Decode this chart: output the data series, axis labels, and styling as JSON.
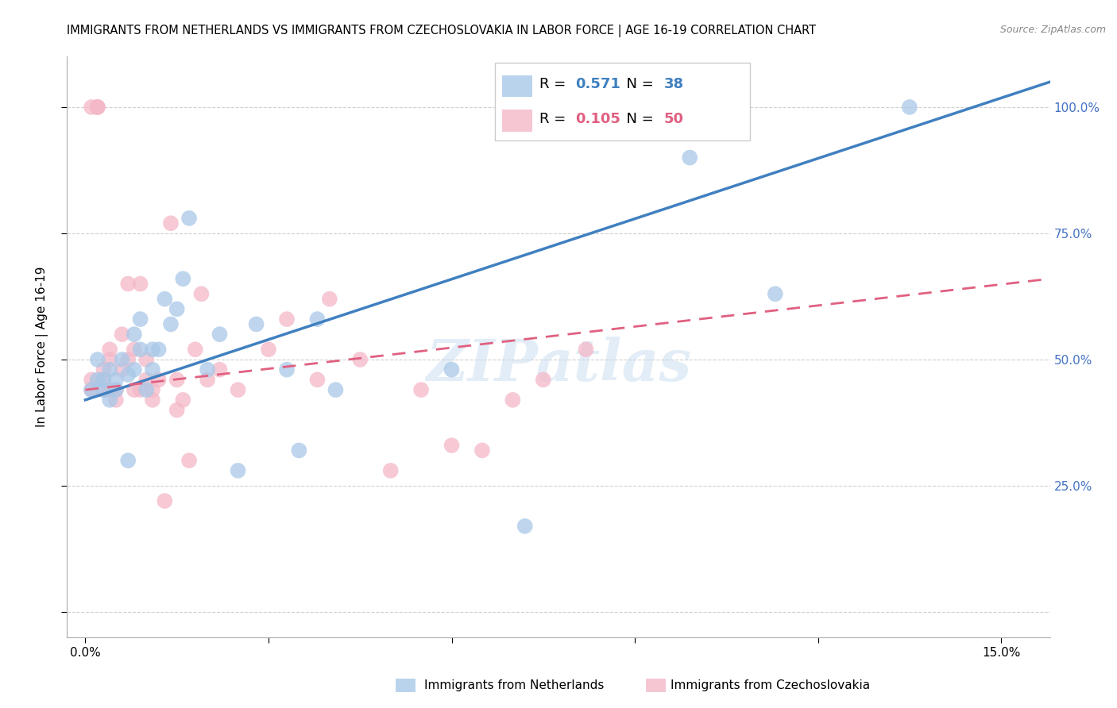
{
  "title": "IMMIGRANTS FROM NETHERLANDS VS IMMIGRANTS FROM CZECHOSLOVAKIA IN LABOR FORCE | AGE 16-19 CORRELATION CHART",
  "source": "Source: ZipAtlas.com",
  "ylabel": "In Labor Force | Age 16-19",
  "xlim": [
    -0.003,
    0.158
  ],
  "ylim": [
    -0.05,
    1.1
  ],
  "R_netherlands": 0.571,
  "N_netherlands": 38,
  "R_czechoslovakia": 0.105,
  "N_czechoslovakia": 50,
  "color_netherlands": "#a8c8e8",
  "color_czechoslovakia": "#f4b8c8",
  "color_netherlands_line": "#4080c0",
  "color_czechoslovakia_line": "#e06080",
  "legend_label_netherlands": "Immigrants from Netherlands",
  "legend_label_czechoslovakia": "Immigrants from Czechoslovakia",
  "watermark": "ZIPatlas",
  "nl_line_x0": 0.0,
  "nl_line_y0": 0.42,
  "nl_line_x1": 0.158,
  "nl_line_y1": 1.05,
  "cz_line_x0": 0.0,
  "cz_line_y0": 0.44,
  "cz_line_x1": 0.158,
  "cz_line_y1": 0.66,
  "netherlands_x": [
    0.001,
    0.002,
    0.002,
    0.003,
    0.003,
    0.004,
    0.004,
    0.005,
    0.005,
    0.006,
    0.007,
    0.007,
    0.008,
    0.008,
    0.009,
    0.009,
    0.01,
    0.011,
    0.011,
    0.012,
    0.013,
    0.014,
    0.015,
    0.016,
    0.017,
    0.02,
    0.022,
    0.025,
    0.028,
    0.033,
    0.035,
    0.038,
    0.041,
    0.06,
    0.072,
    0.099,
    0.113,
    0.135
  ],
  "netherlands_y": [
    0.44,
    0.46,
    0.5,
    0.44,
    0.46,
    0.42,
    0.48,
    0.44,
    0.46,
    0.5,
    0.47,
    0.3,
    0.55,
    0.48,
    0.52,
    0.58,
    0.44,
    0.52,
    0.48,
    0.52,
    0.62,
    0.57,
    0.6,
    0.66,
    0.78,
    0.48,
    0.55,
    0.28,
    0.57,
    0.48,
    0.32,
    0.58,
    0.44,
    0.48,
    0.17,
    0.9,
    0.63,
    1.0
  ],
  "czechoslovakia_x": [
    0.001,
    0.001,
    0.001,
    0.002,
    0.002,
    0.002,
    0.003,
    0.003,
    0.003,
    0.004,
    0.004,
    0.004,
    0.005,
    0.005,
    0.006,
    0.006,
    0.007,
    0.007,
    0.008,
    0.008,
    0.009,
    0.009,
    0.01,
    0.01,
    0.011,
    0.011,
    0.012,
    0.013,
    0.014,
    0.015,
    0.015,
    0.016,
    0.017,
    0.018,
    0.019,
    0.02,
    0.022,
    0.025,
    0.03,
    0.033,
    0.038,
    0.04,
    0.045,
    0.05,
    0.055,
    0.06,
    0.065,
    0.07,
    0.075,
    0.082
  ],
  "czechoslovakia_y": [
    0.44,
    0.46,
    1.0,
    1.0,
    1.0,
    1.0,
    0.44,
    0.46,
    0.48,
    0.44,
    0.5,
    0.52,
    0.42,
    0.44,
    0.48,
    0.55,
    0.5,
    0.65,
    0.44,
    0.52,
    0.44,
    0.65,
    0.46,
    0.5,
    0.42,
    0.44,
    0.46,
    0.22,
    0.77,
    0.4,
    0.46,
    0.42,
    0.3,
    0.52,
    0.63,
    0.46,
    0.48,
    0.44,
    0.52,
    0.58,
    0.46,
    0.62,
    0.5,
    0.28,
    0.44,
    0.33,
    0.32,
    0.42,
    0.46,
    0.52
  ],
  "background_color": "#ffffff",
  "grid_color": "#d0d0d0",
  "tick_color_right": "#4472c4",
  "title_fontsize": 11,
  "axis_label_fontsize": 11,
  "tick_fontsize": 11
}
